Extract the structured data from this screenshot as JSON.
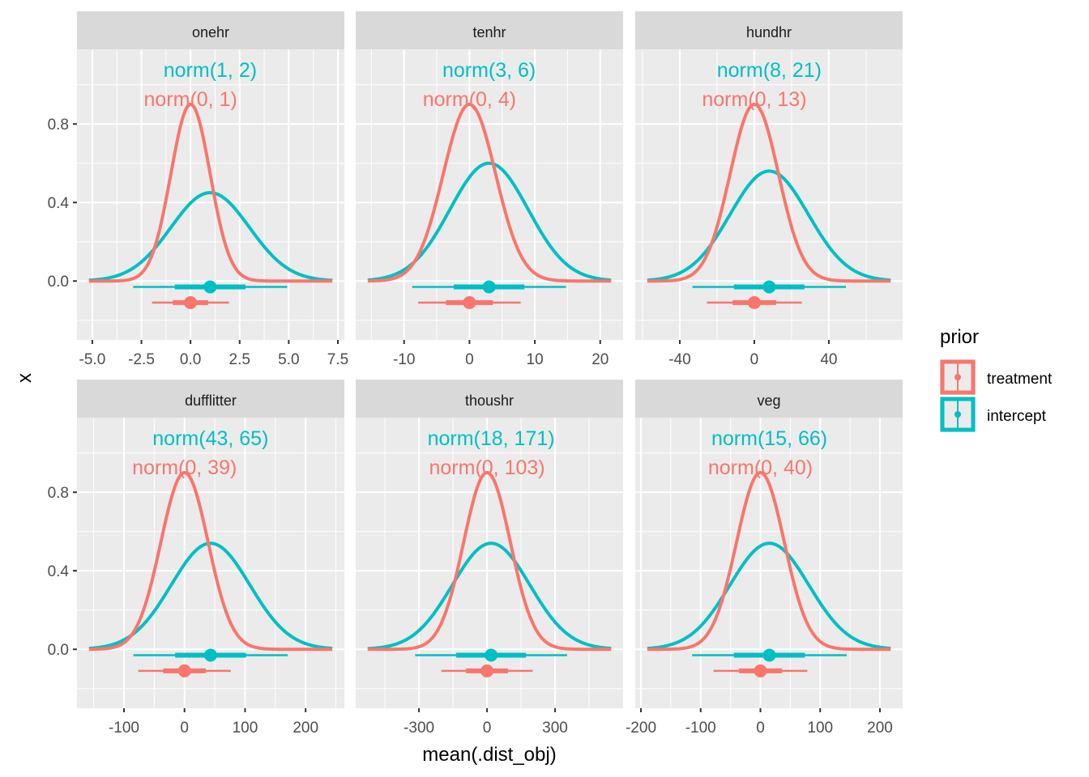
{
  "chart_data": {
    "type": "line",
    "subtype": "faceted density with interval (halfeye) plot",
    "title": "",
    "xlabel": "mean(.dist_obj)",
    "ylabel": "x",
    "ylim": [
      -0.3,
      1.18
    ],
    "yticks": [
      0.0,
      0.4,
      0.8
    ],
    "ytick_labels": [
      "0.0",
      "0.4",
      "0.8"
    ],
    "grid": true,
    "legend": {
      "title": "prior",
      "position": "right",
      "entries": [
        {
          "label": "treatment",
          "color": "#F8766D"
        },
        {
          "label": "intercept",
          "color": "#00BFC4"
        }
      ]
    },
    "series_colors": {
      "treatment": "#F8766D",
      "intercept": "#00BFC4"
    },
    "facets": [
      {
        "name": "onehr",
        "xlim": [
          -5.78,
          7.83
        ],
        "xticks": [
          -5.0,
          -2.5,
          0.0,
          2.5,
          5.0,
          7.5
        ],
        "xtick_labels": [
          "-5.0",
          "-2.5",
          "0.0",
          "2.5",
          "5.0",
          "7.5"
        ],
        "series": [
          {
            "name": "intercept",
            "label": "norm(1, 2)",
            "mean": 1,
            "sd": 2,
            "peak": 0.45,
            "interval_y": -0.03
          },
          {
            "name": "treatment",
            "label": "norm(0, 1)",
            "mean": 0,
            "sd": 1,
            "peak": 0.9,
            "interval_y": -0.11
          }
        ]
      },
      {
        "name": "tenhr",
        "xlim": [
          -17.4,
          23.5
        ],
        "xticks": [
          -10,
          0,
          10,
          20
        ],
        "xtick_labels": [
          "-10",
          "0",
          "10",
          "20"
        ],
        "series": [
          {
            "name": "intercept",
            "label": "norm(3, 6)",
            "mean": 3,
            "sd": 6,
            "peak": 0.6,
            "interval_y": -0.03
          },
          {
            "name": "treatment",
            "label": "norm(0, 4)",
            "mean": 0,
            "sd": 4,
            "peak": 0.9,
            "interval_y": -0.11
          }
        ]
      },
      {
        "name": "hundhr",
        "xlim": [
          -63.9,
          79.6
        ],
        "xticks": [
          -40,
          0,
          40
        ],
        "xtick_labels": [
          "-40",
          "0",
          "40"
        ],
        "series": [
          {
            "name": "intercept",
            "label": "norm(8, 21)",
            "mean": 8,
            "sd": 21,
            "peak": 0.56,
            "interval_y": -0.03
          },
          {
            "name": "treatment",
            "label": "norm(0, 13)",
            "mean": 0,
            "sd": 13,
            "peak": 0.9,
            "interval_y": -0.11
          }
        ]
      },
      {
        "name": "dufflitter",
        "xlim": [
          -177.6,
          264.0
        ],
        "xticks": [
          -100,
          0,
          100,
          200
        ],
        "xtick_labels": [
          "-100",
          "0",
          "100",
          "200"
        ],
        "series": [
          {
            "name": "intercept",
            "label": "norm(43, 65)",
            "mean": 43,
            "sd": 65,
            "peak": 0.54,
            "interval_y": -0.03
          },
          {
            "name": "treatment",
            "label": "norm(0, 39)",
            "mean": 0,
            "sd": 39,
            "peak": 0.9,
            "interval_y": -0.11
          }
        ]
      },
      {
        "name": "thoushr",
        "xlim": [
          -579,
          600
        ],
        "xticks": [
          -300,
          0,
          300
        ],
        "xtick_labels": [
          "-300",
          "0",
          "300"
        ],
        "series": [
          {
            "name": "intercept",
            "label": "norm(18, 171)",
            "mean": 18,
            "sd": 171,
            "peak": 0.54,
            "interval_y": -0.03
          },
          {
            "name": "treatment",
            "label": "norm(0, 103)",
            "mean": 0,
            "sd": 103,
            "peak": 0.9,
            "interval_y": -0.11
          }
        ]
      },
      {
        "name": "veg",
        "xlim": [
          -209.5,
          238.0
        ],
        "xticks": [
          -200,
          -100,
          0,
          100,
          200
        ],
        "xtick_labels": [
          "-200",
          "-100",
          "0",
          "100",
          "200"
        ],
        "series": [
          {
            "name": "intercept",
            "label": "norm(15, 66)",
            "mean": 15,
            "sd": 66,
            "peak": 0.54,
            "interval_y": -0.03
          },
          {
            "name": "treatment",
            "label": "norm(0, 40)",
            "mean": 0,
            "sd": 40,
            "peak": 0.9,
            "interval_y": -0.11
          }
        ]
      }
    ]
  }
}
